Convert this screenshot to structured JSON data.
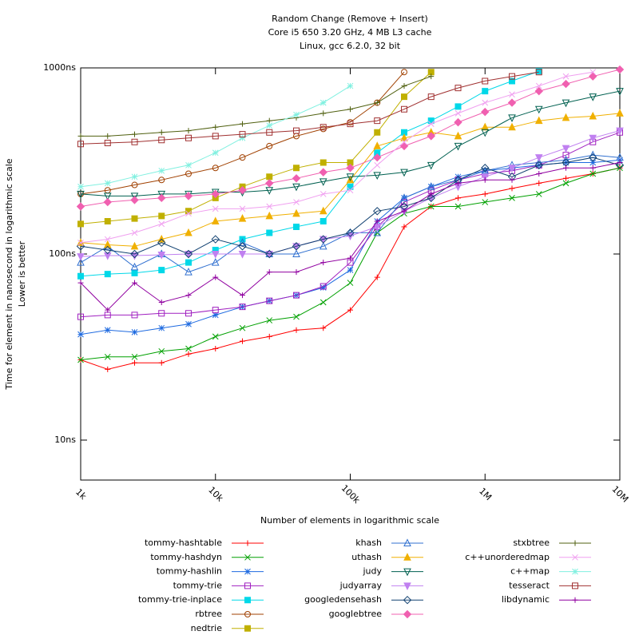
{
  "chart_data": {
    "type": "line",
    "title": [
      "Random Change (Remove + Insert)",
      "Core i5 650 3.20 GHz, 4 MB L3 cache",
      "Linux, gcc 6.2.0, 32 bit"
    ],
    "x_label": "Number of elements in logarithmic scale",
    "y_label": [
      "Time for element in nanosecond in logarithmic scale",
      "Lower is better"
    ],
    "x_log": true,
    "y_log": true,
    "xlim": [
      1000,
      10000000
    ],
    "ylim": [
      6.1,
      1000
    ],
    "xticks": [
      {
        "value": 1000,
        "label": "1k"
      },
      {
        "value": 10000,
        "label": "10k"
      },
      {
        "value": 100000,
        "label": "100k"
      },
      {
        "value": 1000000,
        "label": "1M"
      },
      {
        "value": 10000000,
        "label": "10M"
      }
    ],
    "yticks": [
      {
        "value": 10,
        "label": "10ns"
      },
      {
        "value": 100,
        "label": "100ns"
      },
      {
        "value": 1000,
        "label": "1000ns"
      }
    ],
    "x": [
      1000,
      1585,
      2512,
      3981,
      6310,
      10000,
      15849,
      25119,
      39811,
      63096,
      100000,
      158489,
      251189,
      398107,
      630957,
      1000000,
      1584893,
      2511886,
      3981072,
      6309573,
      10000000
    ],
    "series": [
      {
        "name": "tommy-hashtable",
        "color": "#ff0000",
        "marker": "plus",
        "values": [
          27,
          24,
          26,
          26,
          29,
          31,
          34,
          36,
          39,
          40,
          50,
          75,
          140,
          180,
          200,
          210,
          225,
          240,
          255,
          270,
          290
        ]
      },
      {
        "name": "tommy-hashdyn",
        "color": "#00a000",
        "marker": "cross",
        "values": [
          27,
          28,
          28,
          30,
          31,
          36,
          40,
          44,
          46,
          55,
          70,
          130,
          165,
          180,
          180,
          190,
          200,
          210,
          240,
          270,
          290
        ]
      },
      {
        "name": "tommy-hashlin",
        "color": "#1e6ae0",
        "marker": "star",
        "values": [
          37,
          39,
          38,
          40,
          42,
          47,
          52,
          56,
          60,
          66,
          82,
          150,
          200,
          230,
          260,
          280,
          290,
          300,
          310,
          310,
          320
        ]
      },
      {
        "name": "tommy-trie",
        "color": "#a020c0",
        "marker": "square",
        "values": [
          46,
          47,
          47,
          48,
          48,
          50,
          52,
          56,
          60,
          67,
          90,
          140,
          190,
          220,
          250,
          270,
          280,
          300,
          340,
          400,
          450
        ]
      },
      {
        "name": "tommy-trie-inplace",
        "color": "#00d8e8",
        "marker": "fsquare",
        "values": [
          76,
          78,
          79,
          82,
          90,
          105,
          120,
          130,
          140,
          150,
          230,
          350,
          450,
          520,
          620,
          750,
          850,
          960,
          null,
          null,
          null
        ]
      },
      {
        "name": "rbtree",
        "color": "#a04000",
        "marker": "circle",
        "values": [
          210,
          220,
          235,
          250,
          270,
          290,
          330,
          380,
          430,
          470,
          510,
          650,
          950,
          null,
          null,
          null,
          null,
          null,
          null,
          null,
          null
        ]
      },
      {
        "name": "nedtrie",
        "color": "#c0b000",
        "marker": "fsquare",
        "values": [
          145,
          150,
          155,
          160,
          170,
          200,
          230,
          260,
          290,
          310,
          310,
          450,
          700,
          950,
          null,
          null,
          null,
          null,
          null,
          null,
          null
        ]
      },
      {
        "name": "khash",
        "color": "#3070d0",
        "marker": "triangle",
        "values": [
          90,
          110,
          85,
          100,
          80,
          90,
          115,
          100,
          100,
          110,
          130,
          130,
          200,
          230,
          250,
          280,
          300,
          310,
          320,
          340,
          330
        ]
      },
      {
        "name": "uthash",
        "color": "#f0b000",
        "marker": "ftriangle",
        "values": [
          115,
          112,
          110,
          120,
          130,
          150,
          155,
          160,
          165,
          170,
          250,
          380,
          420,
          450,
          430,
          480,
          480,
          520,
          540,
          550,
          570
        ]
      },
      {
        "name": "judy",
        "color": "#006050",
        "marker": "dtriangle",
        "values": [
          210,
          205,
          205,
          210,
          210,
          215,
          215,
          220,
          230,
          245,
          260,
          265,
          275,
          300,
          380,
          450,
          540,
          600,
          650,
          700,
          750
        ]
      },
      {
        "name": "judyarray",
        "color": "#c080f0",
        "marker": "fdtriangle",
        "values": [
          97,
          98,
          98,
          99,
          100,
          100,
          100,
          100,
          110,
          120,
          125,
          140,
          170,
          200,
          230,
          260,
          290,
          330,
          370,
          420,
          460
        ]
      },
      {
        "name": "googledensehash",
        "color": "#104070",
        "marker": "diamond",
        "values": [
          110,
          105,
          100,
          115,
          100,
          120,
          110,
          100,
          110,
          120,
          130,
          170,
          180,
          200,
          250,
          290,
          260,
          300,
          310,
          330,
          300
        ]
      },
      {
        "name": "googlebtree",
        "color": "#f060b0",
        "marker": "fdiamond",
        "values": [
          180,
          190,
          195,
          200,
          205,
          210,
          220,
          240,
          255,
          275,
          290,
          330,
          380,
          430,
          510,
          580,
          650,
          750,
          820,
          900,
          980
        ]
      },
      {
        "name": "stxbtree",
        "color": "#506010",
        "marker": "plus",
        "values": [
          430,
          430,
          440,
          450,
          460,
          480,
          500,
          520,
          540,
          570,
          600,
          650,
          800,
          900,
          null,
          null,
          null,
          null,
          null,
          null,
          null
        ]
      },
      {
        "name": "c++unorderedmap",
        "color": "#f0a0f0",
        "marker": "cross",
        "values": [
          115,
          120,
          130,
          145,
          165,
          175,
          175,
          180,
          190,
          210,
          220,
          300,
          400,
          500,
          570,
          650,
          720,
          800,
          900,
          950,
          null
        ]
      },
      {
        "name": "c++map",
        "color": "#80f0e0",
        "marker": "star",
        "values": [
          230,
          240,
          260,
          280,
          300,
          350,
          420,
          490,
          560,
          650,
          800,
          null,
          null,
          null,
          null,
          null,
          null,
          null,
          null,
          null,
          null
        ]
      },
      {
        "name": "tesseract",
        "color": "#a03030",
        "marker": "square",
        "values": [
          390,
          395,
          400,
          410,
          420,
          430,
          440,
          450,
          460,
          480,
          500,
          520,
          600,
          700,
          780,
          850,
          900,
          950,
          null,
          null,
          null
        ]
      },
      {
        "name": "libdynamic",
        "color": "#9000a0",
        "marker": "plus",
        "values": [
          70,
          50,
          70,
          55,
          60,
          75,
          60,
          80,
          80,
          90,
          95,
          150,
          170,
          210,
          240,
          250,
          250,
          270,
          290,
          290,
          310
        ]
      }
    ]
  }
}
